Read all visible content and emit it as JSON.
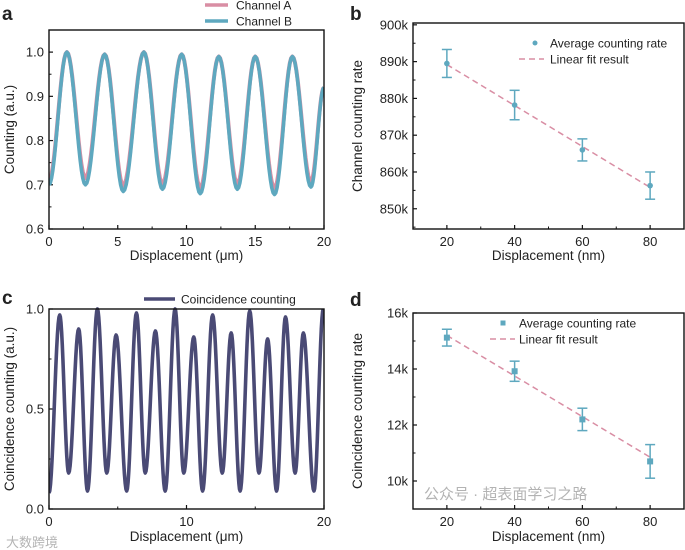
{
  "chart_data": [
    {
      "panel": "a",
      "type": "line",
      "xlabel": "Displacement (μm)",
      "ylabel": "Counting (a.u.)",
      "xlim": [
        0,
        20
      ],
      "ylim": [
        0.6,
        1.05
      ],
      "xticks": [
        0,
        5,
        10,
        15,
        20
      ],
      "yticks": [
        0.6,
        0.7,
        0.8,
        0.9,
        1.0
      ],
      "xtick_labels": [
        "0",
        "5",
        "10",
        "15",
        "20"
      ],
      "ytick_labels": [
        "0.6",
        "0.7",
        "0.8",
        "0.9",
        "1.0"
      ],
      "legend": "top",
      "series": [
        {
          "name": "Channel A",
          "color": "#d98ea4",
          "extrema": [
            [
              0,
              0.71
            ],
            [
              1.3,
              1.0
            ],
            [
              2.65,
              0.715
            ],
            [
              4.05,
              0.995
            ],
            [
              5.4,
              0.698
            ],
            [
              6.9,
              1.0
            ],
            [
              8.25,
              0.702
            ],
            [
              9.65,
              0.995
            ],
            [
              11.0,
              0.693
            ],
            [
              12.35,
              0.99
            ],
            [
              13.7,
              0.702
            ],
            [
              15.0,
              0.99
            ],
            [
              16.4,
              0.692
            ],
            [
              17.7,
              0.99
            ],
            [
              19.05,
              0.707
            ],
            [
              20,
              0.92
            ]
          ]
        },
        {
          "name": "Channel B",
          "color": "#5ea8bf",
          "extrema": [
            [
              0,
              0.7
            ],
            [
              1.3,
              1.0
            ],
            [
              2.65,
              0.7
            ],
            [
              4.05,
              0.995
            ],
            [
              5.4,
              0.685
            ],
            [
              6.9,
              1.0
            ],
            [
              8.25,
              0.69
            ],
            [
              9.65,
              0.995
            ],
            [
              11.0,
              0.68
            ],
            [
              12.35,
              0.99
            ],
            [
              13.7,
              0.69
            ],
            [
              15.0,
              0.99
            ],
            [
              16.4,
              0.678
            ],
            [
              17.7,
              0.99
            ],
            [
              19.05,
              0.695
            ],
            [
              20,
              0.92
            ]
          ]
        }
      ]
    },
    {
      "panel": "b",
      "type": "scatter",
      "xlabel": "Displacement (nm)",
      "ylabel": "Channel counting rate",
      "xlim": [
        10,
        90
      ],
      "ylim": [
        844.5,
        900.5
      ],
      "xticks": [
        20,
        40,
        60,
        80
      ],
      "yticks": [
        850,
        860,
        870,
        880,
        890,
        900
      ],
      "xtick_labels": [
        "20",
        "40",
        "60",
        "80"
      ],
      "ytick_labels": [
        "850k",
        "860k",
        "870k",
        "880k",
        "890k",
        "900k"
      ],
      "legend": "top-right",
      "series": [
        {
          "name": "Average counting rate",
          "color": "#5ea8bf",
          "marker": "circle",
          "x": [
            20,
            40,
            60,
            80
          ],
          "y": [
            889.5,
            878.2,
            866.0,
            856.3
          ],
          "yerr": [
            3.8,
            4.0,
            3.0,
            3.7
          ]
        },
        {
          "name": "Linear fit result",
          "color": "#d98ea4",
          "style": "dashed",
          "x": [
            20,
            80
          ],
          "y": [
            889.2,
            855.8
          ]
        }
      ]
    },
    {
      "panel": "c",
      "type": "line",
      "xlabel": "Displacement (μm)",
      "ylabel": "Coincidence counting (a.u.)",
      "xlim": [
        0,
        20
      ],
      "ylim": [
        0,
        1.0
      ],
      "xticks": [
        0,
        10,
        20
      ],
      "yticks": [
        0.0,
        0.5,
        1.0
      ],
      "xtick_labels": [
        "0",
        "10",
        "20"
      ],
      "ytick_labels": [
        "0.0",
        "0.5",
        "1.0"
      ],
      "legend": "top",
      "series": [
        {
          "name": "Coincidence counting",
          "color": "#4a4a75",
          "extrema": [
            [
              0,
              0.08
            ],
            [
              0.78,
              0.97
            ],
            [
              1.43,
              0.18
            ],
            [
              2.16,
              0.9
            ],
            [
              2.8,
              0.09
            ],
            [
              3.52,
              1.0
            ],
            [
              4.2,
              0.18
            ],
            [
              4.88,
              0.87
            ],
            [
              5.65,
              0.09
            ],
            [
              6.36,
              0.98
            ],
            [
              7.0,
              0.18
            ],
            [
              7.74,
              0.89
            ],
            [
              8.45,
              0.09
            ],
            [
              9.17,
              1.0
            ],
            [
              9.8,
              0.18
            ],
            [
              10.53,
              0.86
            ],
            [
              11.17,
              0.09
            ],
            [
              11.9,
              0.97
            ],
            [
              12.6,
              0.18
            ],
            [
              13.25,
              0.88
            ],
            [
              13.9,
              0.09
            ],
            [
              14.6,
              0.99
            ],
            [
              15.27,
              0.18
            ],
            [
              15.9,
              0.85
            ],
            [
              16.55,
              0.09
            ],
            [
              17.2,
              0.96
            ],
            [
              17.9,
              0.18
            ],
            [
              18.5,
              0.88
            ],
            [
              19.27,
              0.09
            ],
            [
              19.95,
              1.0
            ]
          ]
        }
      ]
    },
    {
      "panel": "d",
      "type": "scatter",
      "xlabel": "Displacement (nm)",
      "ylabel": "Coincidence counting rate",
      "xlim": [
        10,
        90
      ],
      "ylim": [
        9.0,
        16.0
      ],
      "xticks": [
        20,
        40,
        60,
        80
      ],
      "yticks": [
        10,
        12,
        14,
        16
      ],
      "xtick_labels": [
        "20",
        "40",
        "60",
        "80"
      ],
      "ytick_labels": [
        "10k",
        "12k",
        "14k",
        "16k"
      ],
      "legend": "top-right",
      "series": [
        {
          "name": "Average counting rate",
          "color": "#5ea8bf",
          "marker": "square",
          "x": [
            20,
            40,
            60,
            80
          ],
          "y": [
            15.12,
            13.92,
            12.2,
            10.7
          ],
          "yerr": [
            0.3,
            0.36,
            0.4,
            0.6
          ]
        },
        {
          "name": "Linear fit result",
          "color": "#d98ea4",
          "style": "dashed",
          "x": [
            20,
            80
          ],
          "y": [
            15.2,
            10.85
          ]
        }
      ]
    }
  ],
  "panel_labels": [
    "a",
    "b",
    "c",
    "d"
  ],
  "watermarks": {
    "left": "大数跨境",
    "right": "公众号 · 超表面学习之路"
  }
}
